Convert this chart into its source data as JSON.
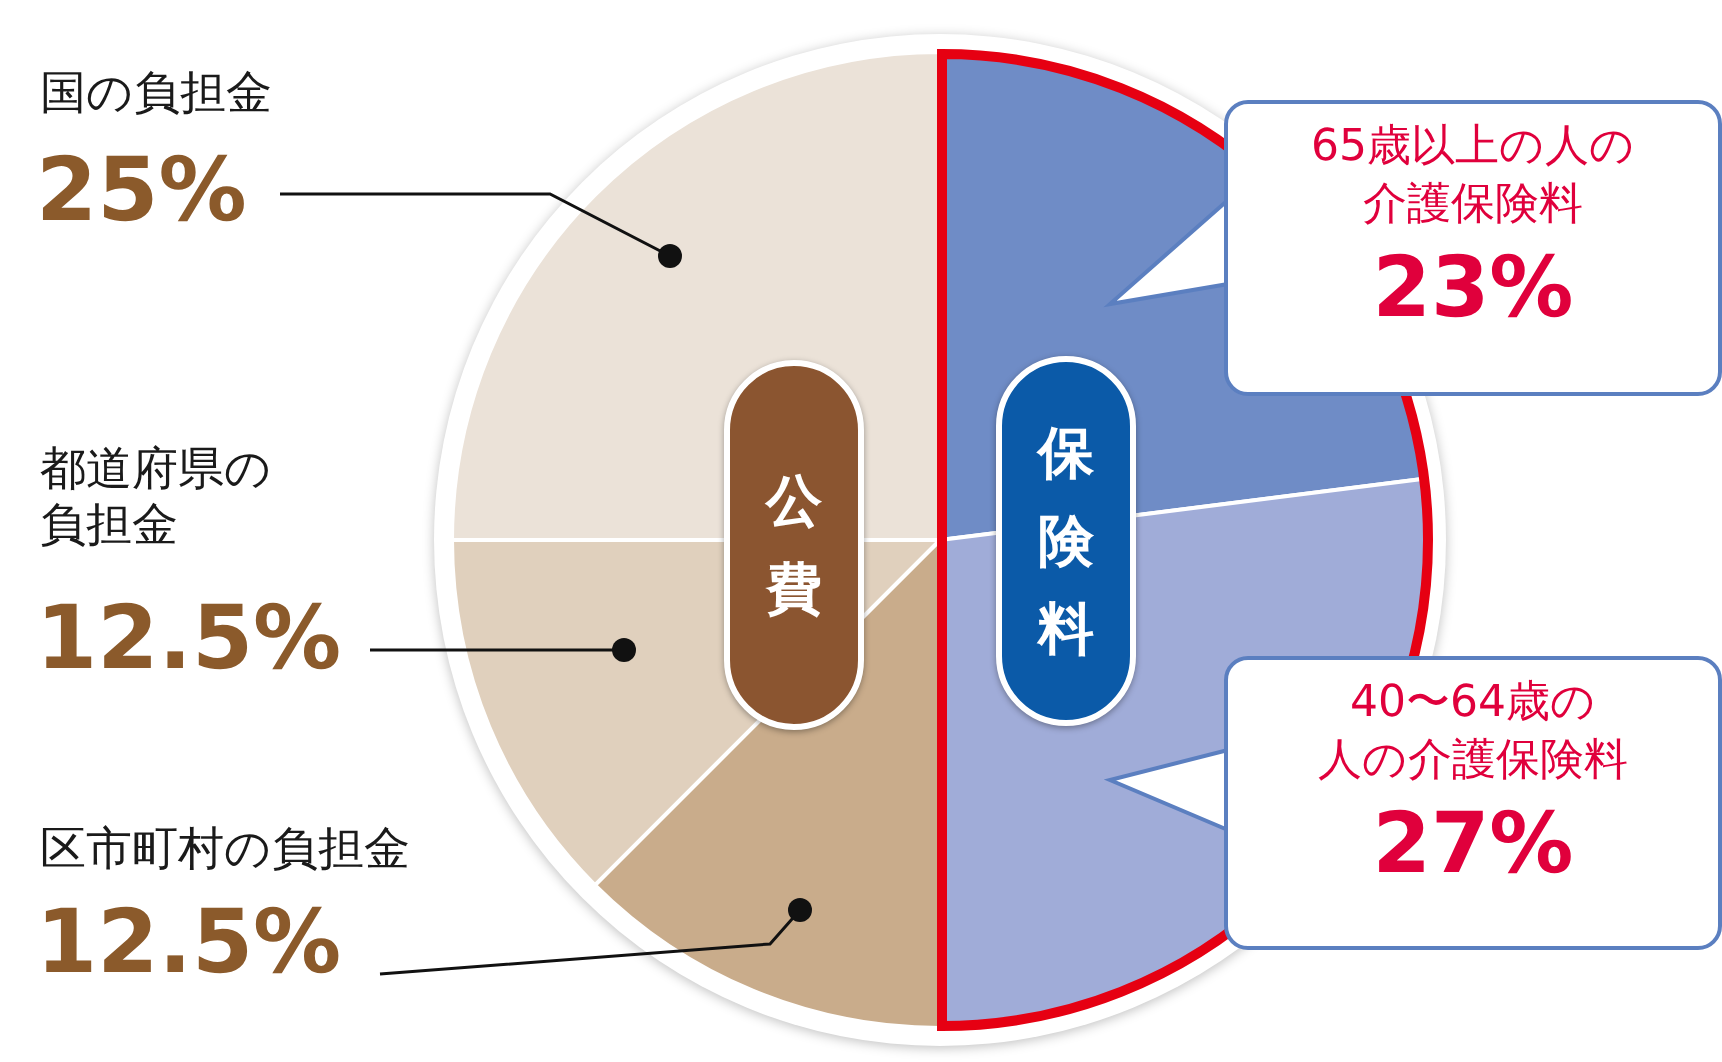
{
  "chart_data": {
    "type": "pie",
    "categories": [
      "65歳以上の人の介護保険料",
      "40〜64歳の人の介護保険料",
      "区市町村の負担金",
      "都道府県の負担金",
      "国の負担金"
    ],
    "values": [
      23,
      27,
      12.5,
      12.5,
      25
    ],
    "colors": [
      "#6f8cc6",
      "#a0acd8",
      "#c9ac8b",
      "#e0d0bd",
      "#ebe2d8"
    ],
    "value_labels": [
      "23%",
      "27%",
      "12.5%",
      "12.5%",
      "25%"
    ],
    "annotations": [
      "公費",
      "保険料"
    ],
    "legend": false
  }
}
